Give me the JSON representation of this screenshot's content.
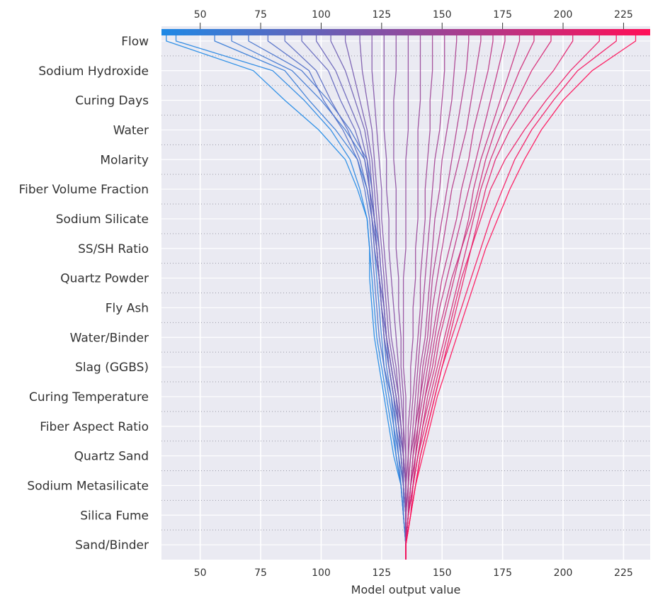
{
  "chart_data": {
    "type": "line",
    "chart_kind": "SHAP decision plot",
    "xlabel": "Model output value",
    "ylabel": "",
    "xlim": [
      34,
      236
    ],
    "xticks": [
      50,
      75,
      100,
      125,
      150,
      175,
      200,
      225
    ],
    "base_value": 135,
    "grid": true,
    "legend": "none",
    "colormap": [
      "#1e88e5",
      "#ff0d57"
    ],
    "features": [
      "Flow",
      "Sodium Hydroxide",
      "Curing Days",
      "Water",
      "Molarity",
      "Fiber Volume Fraction",
      "Sodium Silicate",
      "SS/SH Ratio",
      "Quartz Powder",
      "Fly Ash",
      "Water/Binder",
      "Slag (GGBS)",
      "Curing Temperature",
      "Fiber Aspect Ratio",
      "Quartz Sand",
      "Sodium Metasilicate",
      "Silica Fume",
      "Sand/Binder"
    ],
    "series_description_note": "",
    "samples": [
      {
        "final": 36,
        "path": [
          135,
          134,
          133,
          130,
          128,
          126,
          124,
          122,
          121,
          120,
          120,
          119,
          115,
          110,
          99,
          85,
          72,
          36
        ]
      },
      {
        "final": 40,
        "path": [
          135,
          134,
          133,
          131,
          129,
          127,
          125,
          123,
          122,
          121,
          120,
          119,
          116,
          112,
          104,
          93,
          80,
          40
        ]
      },
      {
        "final": 56,
        "path": [
          135,
          134,
          133,
          131,
          130,
          128,
          126,
          125,
          124,
          123,
          122,
          121,
          119,
          115,
          106,
          95,
          85,
          56
        ]
      },
      {
        "final": 63,
        "path": [
          135,
          134,
          133,
          132,
          130,
          129,
          127,
          126,
          125,
          124,
          123,
          122,
          120,
          118,
          110,
          100,
          88,
          63
        ]
      },
      {
        "final": 70,
        "path": [
          135,
          134,
          134,
          132,
          131,
          130,
          128,
          127,
          126,
          125,
          124,
          122,
          121,
          119,
          112,
          103,
          92,
          70
        ]
      },
      {
        "final": 78,
        "path": [
          135,
          135,
          134,
          133,
          131,
          129,
          126,
          124,
          123,
          122,
          121,
          120,
          118,
          115,
          109,
          101,
          95,
          78
        ]
      },
      {
        "final": 85,
        "path": [
          135,
          135,
          134,
          133,
          132,
          130,
          128,
          126,
          125,
          124,
          123,
          121,
          119,
          116,
          111,
          104,
          98,
          85
        ]
      },
      {
        "final": 92,
        "path": [
          135,
          135,
          134,
          133,
          132,
          131,
          129,
          127,
          125,
          124,
          123,
          122,
          120,
          118,
          114,
          108,
          103,
          92
        ]
      },
      {
        "final": 98,
        "path": [
          135,
          135,
          134,
          134,
          132,
          131,
          129,
          127,
          126,
          124,
          122,
          121,
          120,
          119,
          116,
          111,
          106,
          98
        ]
      },
      {
        "final": 104,
        "path": [
          135,
          135,
          134,
          133,
          132,
          130,
          128,
          126,
          125,
          124,
          123,
          122,
          121,
          120,
          118,
          114,
          110,
          104
        ]
      },
      {
        "final": 110,
        "path": [
          135,
          135,
          134,
          134,
          133,
          131,
          129,
          127,
          126,
          125,
          124,
          123,
          122,
          121,
          119,
          116,
          113,
          110
        ]
      },
      {
        "final": 116,
        "path": [
          135,
          135,
          135,
          134,
          133,
          132,
          130,
          128,
          127,
          126,
          125,
          124,
          123,
          122,
          121,
          119,
          117,
          116
        ]
      },
      {
        "final": 121,
        "path": [
          135,
          135,
          135,
          134,
          133,
          132,
          131,
          129,
          128,
          127,
          126,
          125,
          125,
          124,
          123,
          122,
          121,
          121
        ]
      },
      {
        "final": 126,
        "path": [
          135,
          135,
          135,
          134,
          134,
          133,
          132,
          131,
          130,
          129,
          128,
          128,
          127,
          127,
          126,
          126,
          126,
          126
        ]
      },
      {
        "final": 131,
        "path": [
          135,
          135,
          135,
          135,
          134,
          134,
          133,
          133,
          132,
          132,
          131,
          131,
          131,
          130,
          130,
          130,
          131,
          131
        ]
      },
      {
        "final": 136,
        "path": [
          135,
          135,
          135,
          135,
          135,
          135,
          134,
          134,
          134,
          134,
          135,
          135,
          135,
          135,
          136,
          136,
          136,
          136
        ]
      },
      {
        "final": 141,
        "path": [
          135,
          135,
          135,
          136,
          136,
          137,
          137,
          138,
          138,
          139,
          139,
          140,
          140,
          140,
          140,
          141,
          141,
          141
        ]
      },
      {
        "final": 146,
        "path": [
          135,
          135,
          136,
          136,
          137,
          138,
          139,
          140,
          141,
          141,
          142,
          143,
          143,
          144,
          145,
          145,
          146,
          146
        ]
      },
      {
        "final": 151,
        "path": [
          135,
          135,
          136,
          137,
          138,
          139,
          140,
          141,
          142,
          143,
          144,
          145,
          146,
          147,
          149,
          150,
          151,
          151
        ]
      },
      {
        "final": 156,
        "path": [
          135,
          136,
          136,
          137,
          139,
          140,
          141,
          143,
          144,
          145,
          146,
          147,
          149,
          150,
          152,
          154,
          155,
          156
        ]
      },
      {
        "final": 161,
        "path": [
          135,
          136,
          137,
          138,
          139,
          141,
          142,
          144,
          145,
          146,
          148,
          150,
          152,
          154,
          156,
          158,
          160,
          161
        ]
      },
      {
        "final": 166,
        "path": [
          135,
          136,
          137,
          138,
          140,
          141,
          143,
          145,
          146,
          148,
          150,
          152,
          154,
          157,
          160,
          162,
          164,
          166
        ]
      },
      {
        "final": 171,
        "path": [
          135,
          136,
          137,
          139,
          140,
          142,
          144,
          146,
          148,
          150,
          153,
          156,
          158,
          161,
          163,
          166,
          169,
          171
        ]
      },
      {
        "final": 176,
        "path": [
          135,
          136,
          137,
          139,
          141,
          143,
          145,
          147,
          149,
          152,
          155,
          158,
          161,
          164,
          167,
          170,
          173,
          176
        ]
      },
      {
        "final": 182,
        "path": [
          135,
          136,
          138,
          139,
          141,
          143,
          146,
          148,
          151,
          154,
          158,
          161,
          163,
          166,
          170,
          174,
          178,
          182
        ]
      },
      {
        "final": 188,
        "path": [
          135,
          136,
          138,
          140,
          142,
          144,
          147,
          149,
          152,
          155,
          158,
          162,
          165,
          168,
          172,
          177,
          182,
          188
        ]
      },
      {
        "final": 195,
        "path": [
          135,
          136,
          138,
          140,
          142,
          145,
          148,
          151,
          154,
          157,
          160,
          163,
          166,
          170,
          175,
          181,
          187,
          195
        ]
      },
      {
        "final": 204,
        "path": [
          135,
          137,
          138,
          140,
          143,
          146,
          149,
          152,
          155,
          158,
          162,
          165,
          168,
          172,
          178,
          186,
          196,
          204
        ]
      },
      {
        "final": 215,
        "path": [
          135,
          137,
          139,
          141,
          144,
          147,
          150,
          153,
          156,
          159,
          162,
          166,
          170,
          176,
          184,
          193,
          203,
          215
        ]
      },
      {
        "final": 222,
        "path": [
          135,
          137,
          139,
          141,
          144,
          147,
          150,
          154,
          158,
          162,
          166,
          170,
          175,
          180,
          187,
          196,
          206,
          222
        ]
      },
      {
        "final": 230,
        "path": [
          135,
          137,
          139,
          142,
          145,
          148,
          152,
          156,
          160,
          164,
          168,
          173,
          178,
          184,
          191,
          200,
          212,
          230
        ]
      }
    ]
  }
}
